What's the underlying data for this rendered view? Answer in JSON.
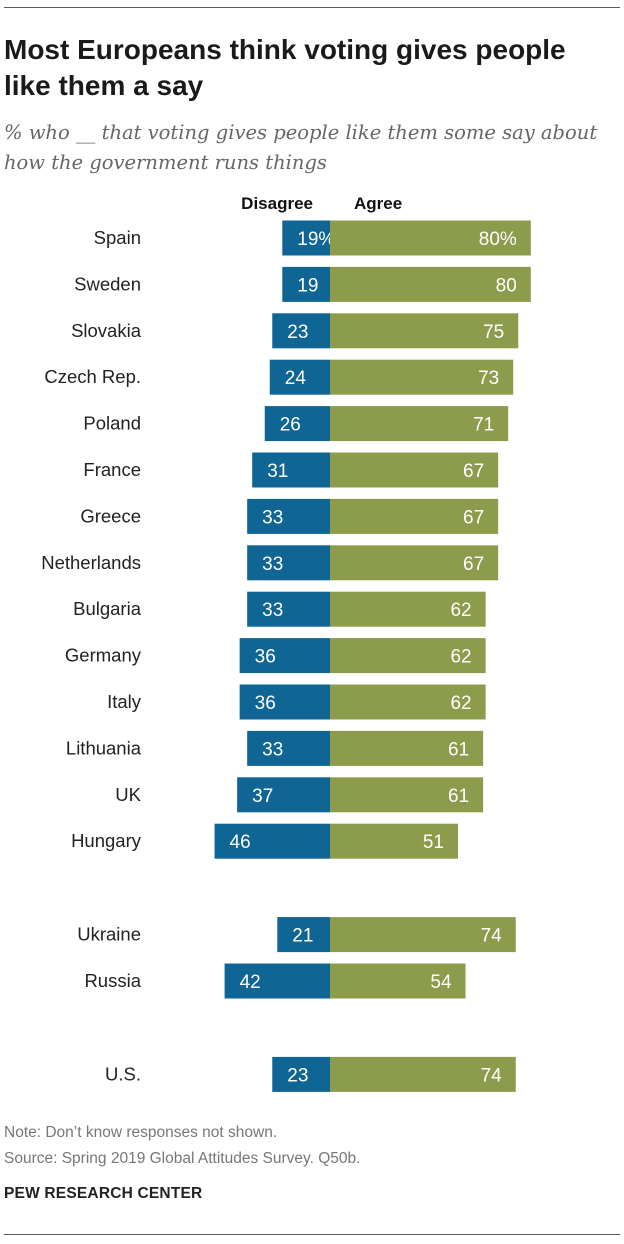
{
  "title": "Most Europeans think voting gives people like them a say",
  "subtitle": "% who __ that voting gives people like them some say about how the government runs things",
  "note": "Note: Don’t know responses not shown.",
  "source": "Source: Spring 2019 Global Attitudes Survey. Q50b.",
  "brand": "PEW RESEARCH CENTER",
  "colors": {
    "disagree": "#0f6594",
    "agree": "#8c9c4c",
    "bar_text": "#ffffff",
    "label_text": "#222222"
  },
  "chart_data": {
    "type": "bar",
    "orientation": "horizontal-diverging",
    "series": [
      {
        "name": "Disagree",
        "values": [
          19,
          19,
          23,
          24,
          26,
          31,
          33,
          33,
          33,
          36,
          36,
          33,
          37,
          46,
          21,
          42,
          23
        ]
      },
      {
        "name": "Agree",
        "values": [
          80,
          80,
          75,
          73,
          71,
          67,
          67,
          67,
          62,
          62,
          62,
          61,
          61,
          51,
          74,
          54,
          74
        ]
      }
    ],
    "categories": [
      "Spain",
      "Sweden",
      "Slovakia",
      "Czech Rep.",
      "Poland",
      "France",
      "Greece",
      "Netherlands",
      "Bulgaria",
      "Germany",
      "Italy",
      "Lithuania",
      "UK",
      "Hungary",
      "Ukraine",
      "Russia",
      "U.S."
    ],
    "groups": [
      14,
      2,
      1
    ],
    "first_row_suffix": "%",
    "units": "percent"
  }
}
